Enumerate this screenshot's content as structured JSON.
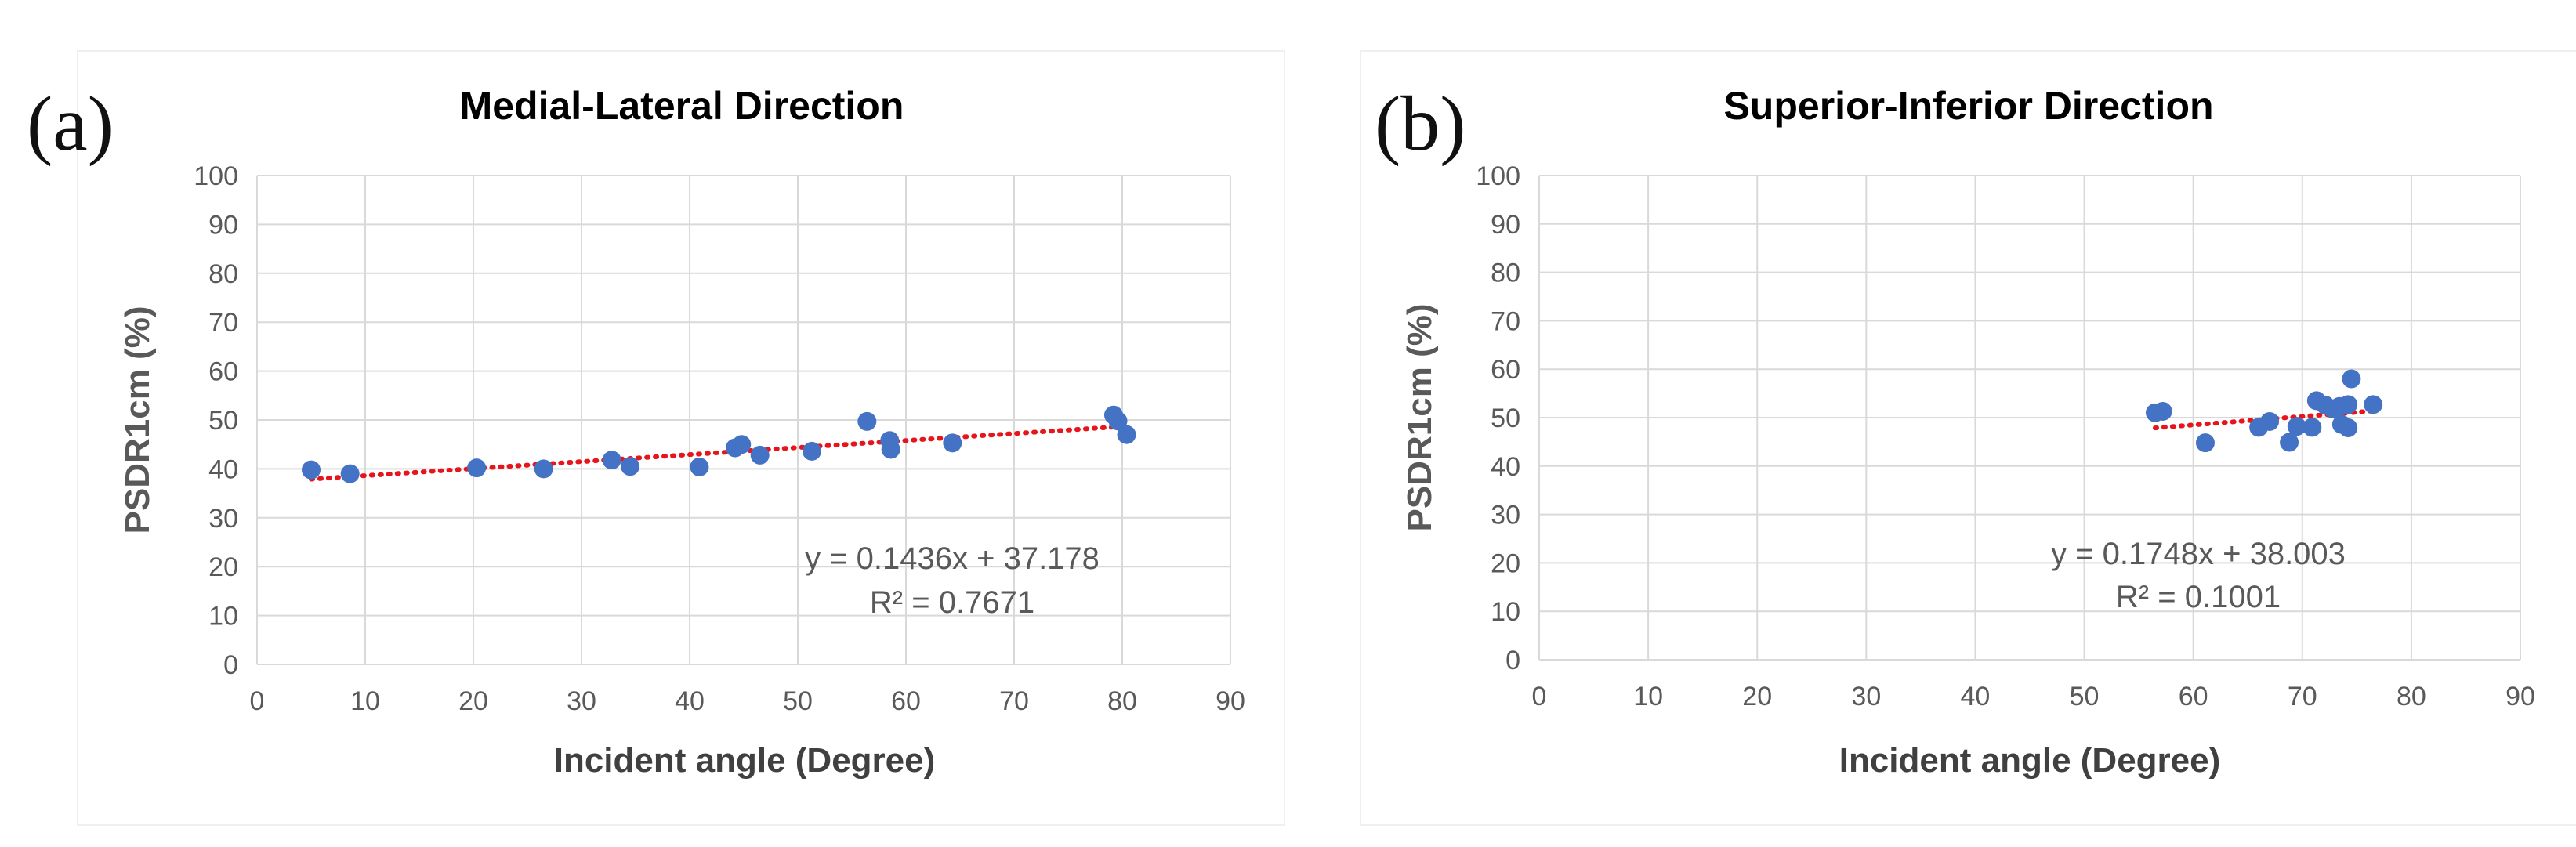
{
  "panels": [
    {
      "label": "(a)"
    },
    {
      "label": "(b)"
    }
  ],
  "chart_data": [
    {
      "type": "scatter",
      "title": "Medial-Lateral Direction",
      "xlabel": "Incident angle (Degree)",
      "ylabel": "PSDR1cm (%)",
      "xlim": [
        0,
        90
      ],
      "ylim": [
        0,
        100
      ],
      "xticks": [
        0,
        10,
        20,
        30,
        40,
        50,
        60,
        70,
        80,
        90
      ],
      "yticks": [
        0,
        10,
        20,
        30,
        40,
        50,
        60,
        70,
        80,
        90,
        100
      ],
      "grid": true,
      "legend": "none",
      "marker_color": "#4472C4",
      "trendline_color": "#E8141B",
      "points": [
        [
          5.0,
          39.8
        ],
        [
          8.6,
          39.0
        ],
        [
          20.3,
          40.2
        ],
        [
          26.5,
          40.0
        ],
        [
          32.8,
          41.8
        ],
        [
          34.5,
          40.5
        ],
        [
          40.9,
          40.4
        ],
        [
          44.2,
          44.3
        ],
        [
          44.8,
          45.0
        ],
        [
          46.5,
          42.8
        ],
        [
          51.3,
          43.6
        ],
        [
          56.4,
          49.7
        ],
        [
          58.5,
          45.8
        ],
        [
          58.6,
          44.0
        ],
        [
          64.3,
          45.3
        ],
        [
          79.2,
          51.0
        ],
        [
          79.6,
          49.8
        ],
        [
          80.4,
          47.0
        ]
      ],
      "trendline": {
        "slope": 0.1436,
        "intercept": 37.178,
        "x_range": [
          5.0,
          80.4
        ]
      },
      "annotations": [
        "y = 0.1436x + 37.178",
        "R² = 0.7671"
      ]
    },
    {
      "type": "scatter",
      "title": "Superior-Inferior Direction",
      "xlabel": "Incident angle (Degree)",
      "ylabel": "PSDR1cm (%)",
      "xlim": [
        0,
        90
      ],
      "ylim": [
        0,
        100
      ],
      "xticks": [
        0,
        10,
        20,
        30,
        40,
        50,
        60,
        70,
        80,
        90
      ],
      "yticks": [
        0,
        10,
        20,
        30,
        40,
        50,
        60,
        70,
        80,
        90,
        100
      ],
      "grid": true,
      "legend": "none",
      "marker_color": "#4472C4",
      "trendline_color": "#E8141B",
      "points": [
        [
          56.5,
          51.0
        ],
        [
          57.2,
          51.3
        ],
        [
          61.1,
          44.8
        ],
        [
          66.0,
          48.0
        ],
        [
          67.0,
          49.2
        ],
        [
          68.8,
          44.9
        ],
        [
          69.5,
          48.2
        ],
        [
          70.9,
          48.0
        ],
        [
          71.3,
          53.5
        ],
        [
          72.1,
          52.6
        ],
        [
          72.8,
          51.8
        ],
        [
          73.4,
          52.3
        ],
        [
          73.6,
          48.6
        ],
        [
          74.2,
          47.9
        ],
        [
          74.2,
          52.7
        ],
        [
          74.5,
          58.0
        ],
        [
          76.5,
          52.7
        ]
      ],
      "trendline": {
        "slope": 0.1748,
        "intercept": 38.003,
        "x_range": [
          56.5,
          76.5
        ]
      },
      "annotations": [
        "y = 0.1748x + 38.003",
        "R² = 0.1001"
      ]
    }
  ]
}
